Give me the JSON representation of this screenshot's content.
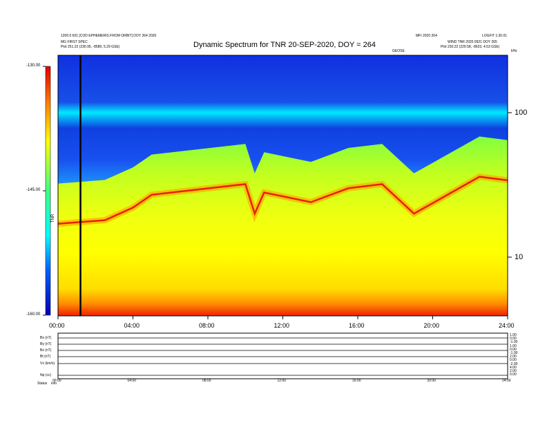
{
  "header": {
    "left_line1": "1200.0 601 [COD EPHEMERIS FROM ORBIT] DOY 264 2020",
    "left_line2": "MG FIRST SPEC",
    "left_line3": "Plot  251.22 (230.95, -8589, 5.29 GSE)",
    "center_right_top": "MFI 2020 264",
    "right_top": "LOGFIT 1:30.01",
    "right_line2": "WIND TNR 2020 0921 DOY 265",
    "right_line3": "Plot  230.22 (229.58, -8623, 4.53 GSE)",
    "small_mark": "GEOSE"
  },
  "chart_data": {
    "type": "heatmap",
    "title": "Dynamic Spectrum for TNR 20-SEP-2020, DOY = 264",
    "x_axis": {
      "range": [
        "00:00",
        "24:00"
      ],
      "ticks": [
        "00:00",
        "04:00",
        "08:00",
        "12:00",
        "16:00",
        "20:00",
        "24:00"
      ]
    },
    "y_axis_right": {
      "scale": "log",
      "unit_label": "kHz",
      "ticks": [
        "100",
        "10"
      ]
    },
    "colorbar": {
      "ticks": [
        "-130.00",
        "-145.00",
        "-160.00"
      ],
      "label": "TNR",
      "range": [
        -160,
        -130
      ],
      "colors": [
        "#0000b4",
        "#00a8ff",
        "#00ffff",
        "#00ff80",
        "#ffff00",
        "#ff8000",
        "#e00000"
      ]
    },
    "spectrum_bands": [
      {
        "time_hr": 0,
        "plasma_line_khz": 17
      },
      {
        "time_hr": 2.5,
        "plasma_line_khz": 18
      },
      {
        "time_hr": 4.0,
        "plasma_line_khz": 22
      },
      {
        "time_hr": 5.0,
        "plasma_line_khz": 27
      },
      {
        "time_hr": 10.0,
        "plasma_line_khz": 32
      },
      {
        "time_hr": 10.5,
        "plasma_line_khz": 20
      },
      {
        "time_hr": 11.0,
        "plasma_line_khz": 28
      },
      {
        "time_hr": 13.5,
        "plasma_line_khz": 24
      },
      {
        "time_hr": 15.5,
        "plasma_line_khz": 30
      },
      {
        "time_hr": 17.3,
        "plasma_line_khz": 32
      },
      {
        "time_hr": 19.0,
        "plasma_line_khz": 20
      },
      {
        "time_hr": 22.5,
        "plasma_line_khz": 36
      },
      {
        "time_hr": 24.0,
        "plasma_line_khz": 34
      }
    ],
    "marker_time_hr": 1.2
  },
  "lower_panel": {
    "row_labels": [
      "Bx (nT)",
      "By (nT)",
      "Bz (nT)",
      "Bt (nT)",
      "Vx (km/s)",
      "Np (cc)"
    ],
    "right_scale": [
      "1.00",
      "0.00",
      "-1.00",
      "1.00",
      "0.00",
      "-1.00",
      "2.00",
      "0.00",
      "-2.00",
      "4.00",
      "2.00",
      "0.00"
    ],
    "x_ticks": [
      "00:00",
      "04:00",
      "08:00",
      "12:00",
      "16:00",
      "20:00",
      "24:00"
    ],
    "footer_left": "Status",
    "footer_left2": "info"
  }
}
